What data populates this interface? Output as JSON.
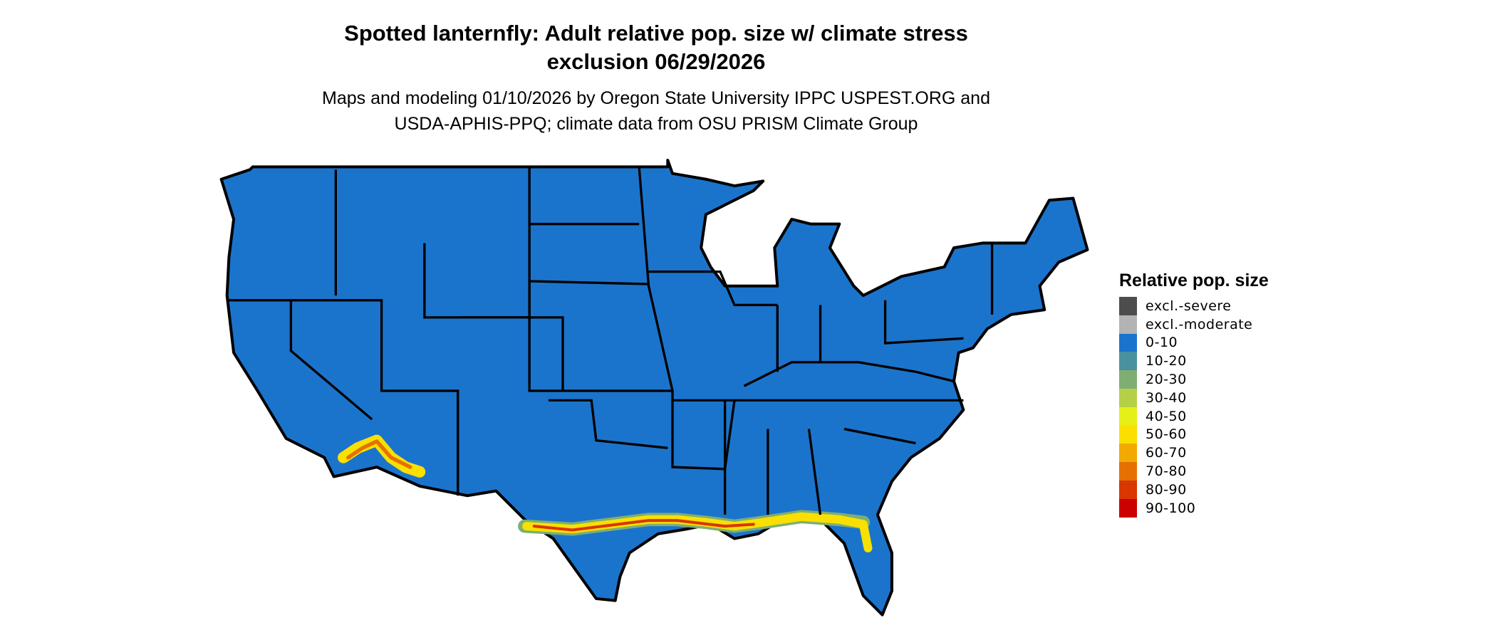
{
  "title": {
    "line1": "Spotted lanternfly: Adult relative pop. size w/ climate stress",
    "line2": "exclusion 06/29/2026"
  },
  "subtitle": {
    "line1": "Maps and modeling 01/10/2026 by Oregon State University IPPC USPEST.ORG and",
    "line2": "USDA-APHIS-PPQ; climate data from OSU PRISM Climate Group"
  },
  "map": {
    "region": "Contiguous United States",
    "base_color": "#1b74cc",
    "border_color": "#000000",
    "hotspots": [
      "Gulf Coast of Texas and Louisiana",
      "Northern Florida",
      "Southern Arizona / Southern California desert"
    ]
  },
  "legend": {
    "title": "Relative pop. size",
    "items": [
      {
        "label": "excl.-severe",
        "color": "#4d4d4d"
      },
      {
        "label": "excl.-moderate",
        "color": "#b3b3b3"
      },
      {
        "label": "0-10",
        "color": "#1b74cc"
      },
      {
        "label": "10-20",
        "color": "#4a919f"
      },
      {
        "label": "20-30",
        "color": "#7fae73"
      },
      {
        "label": "30-40",
        "color": "#b4d046"
      },
      {
        "label": "40-50",
        "color": "#e6ef17"
      },
      {
        "label": "50-60",
        "color": "#f9e001"
      },
      {
        "label": "60-70",
        "color": "#f2a901"
      },
      {
        "label": "70-80",
        "color": "#e57200"
      },
      {
        "label": "80-90",
        "color": "#d93600"
      },
      {
        "label": "90-100",
        "color": "#cc0000"
      }
    ]
  }
}
